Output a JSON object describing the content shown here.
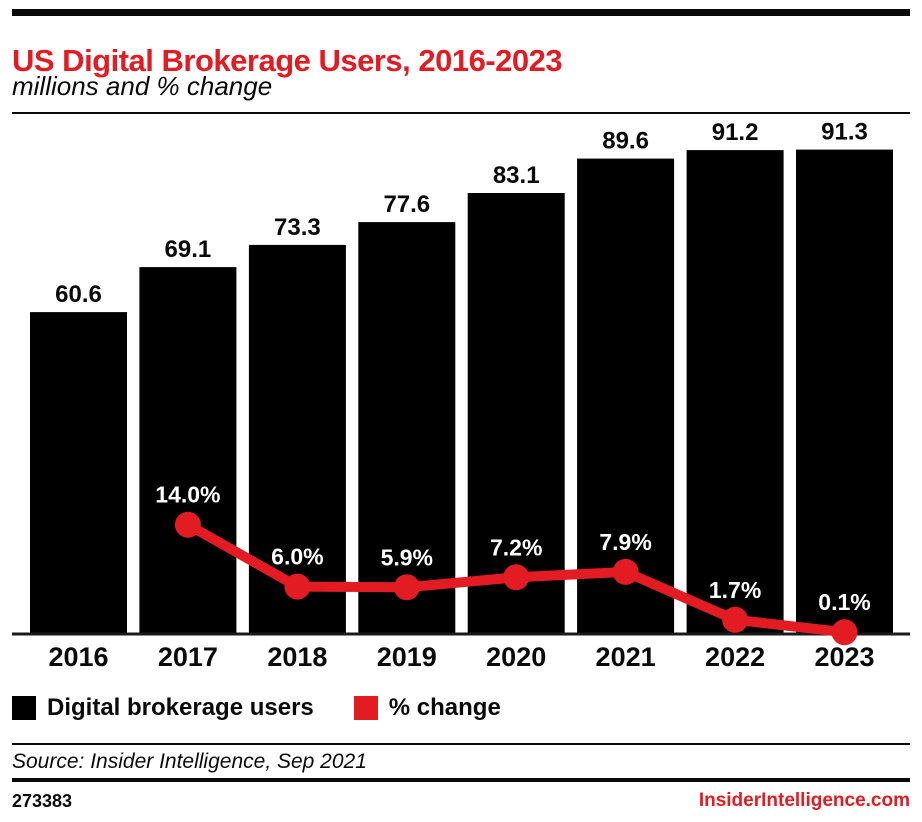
{
  "header": {
    "title": "US Digital Brokerage Users, 2016-2023",
    "subtitle": "millions and % change"
  },
  "chart_data": {
    "type": "bar",
    "categories": [
      "2016",
      "2017",
      "2018",
      "2019",
      "2020",
      "2021",
      "2022",
      "2023"
    ],
    "series": [
      {
        "name": "Digital brokerage users",
        "type": "bar",
        "unit": "millions",
        "color": "#000000",
        "values": [
          60.6,
          69.1,
          73.3,
          77.6,
          83.1,
          89.6,
          91.2,
          91.3
        ]
      },
      {
        "name": "% change",
        "type": "line",
        "unit": "%",
        "color": "#e31b23",
        "values": [
          null,
          14.0,
          6.0,
          5.9,
          7.2,
          7.9,
          1.7,
          0.1
        ]
      }
    ],
    "title": "US Digital Brokerage Users, 2016-2023",
    "xlabel": "",
    "ylabel": "",
    "ylim": [
      0,
      95
    ],
    "y2lim": [
      0,
      65
    ],
    "grid": false,
    "legend_position": "bottom",
    "annotations": "bar values labeled above bars in black; % change labeled in white above red round markers"
  },
  "legend": [
    {
      "label": "Digital brokerage users",
      "color": "#000000"
    },
    {
      "label": "% change",
      "color": "#e31b23"
    }
  ],
  "footer": {
    "source": "Source: Insider Intelligence, Sep 2021",
    "chart_id": "273383",
    "site": "InsiderIntelligence.com"
  },
  "colors": {
    "accent_red": "#e31b23",
    "bar_black": "#000000",
    "axis_line": "#1a1a1a",
    "text_black": "#0a0a0a",
    "line_label_white": "#ffffff",
    "background": "#ffffff"
  }
}
